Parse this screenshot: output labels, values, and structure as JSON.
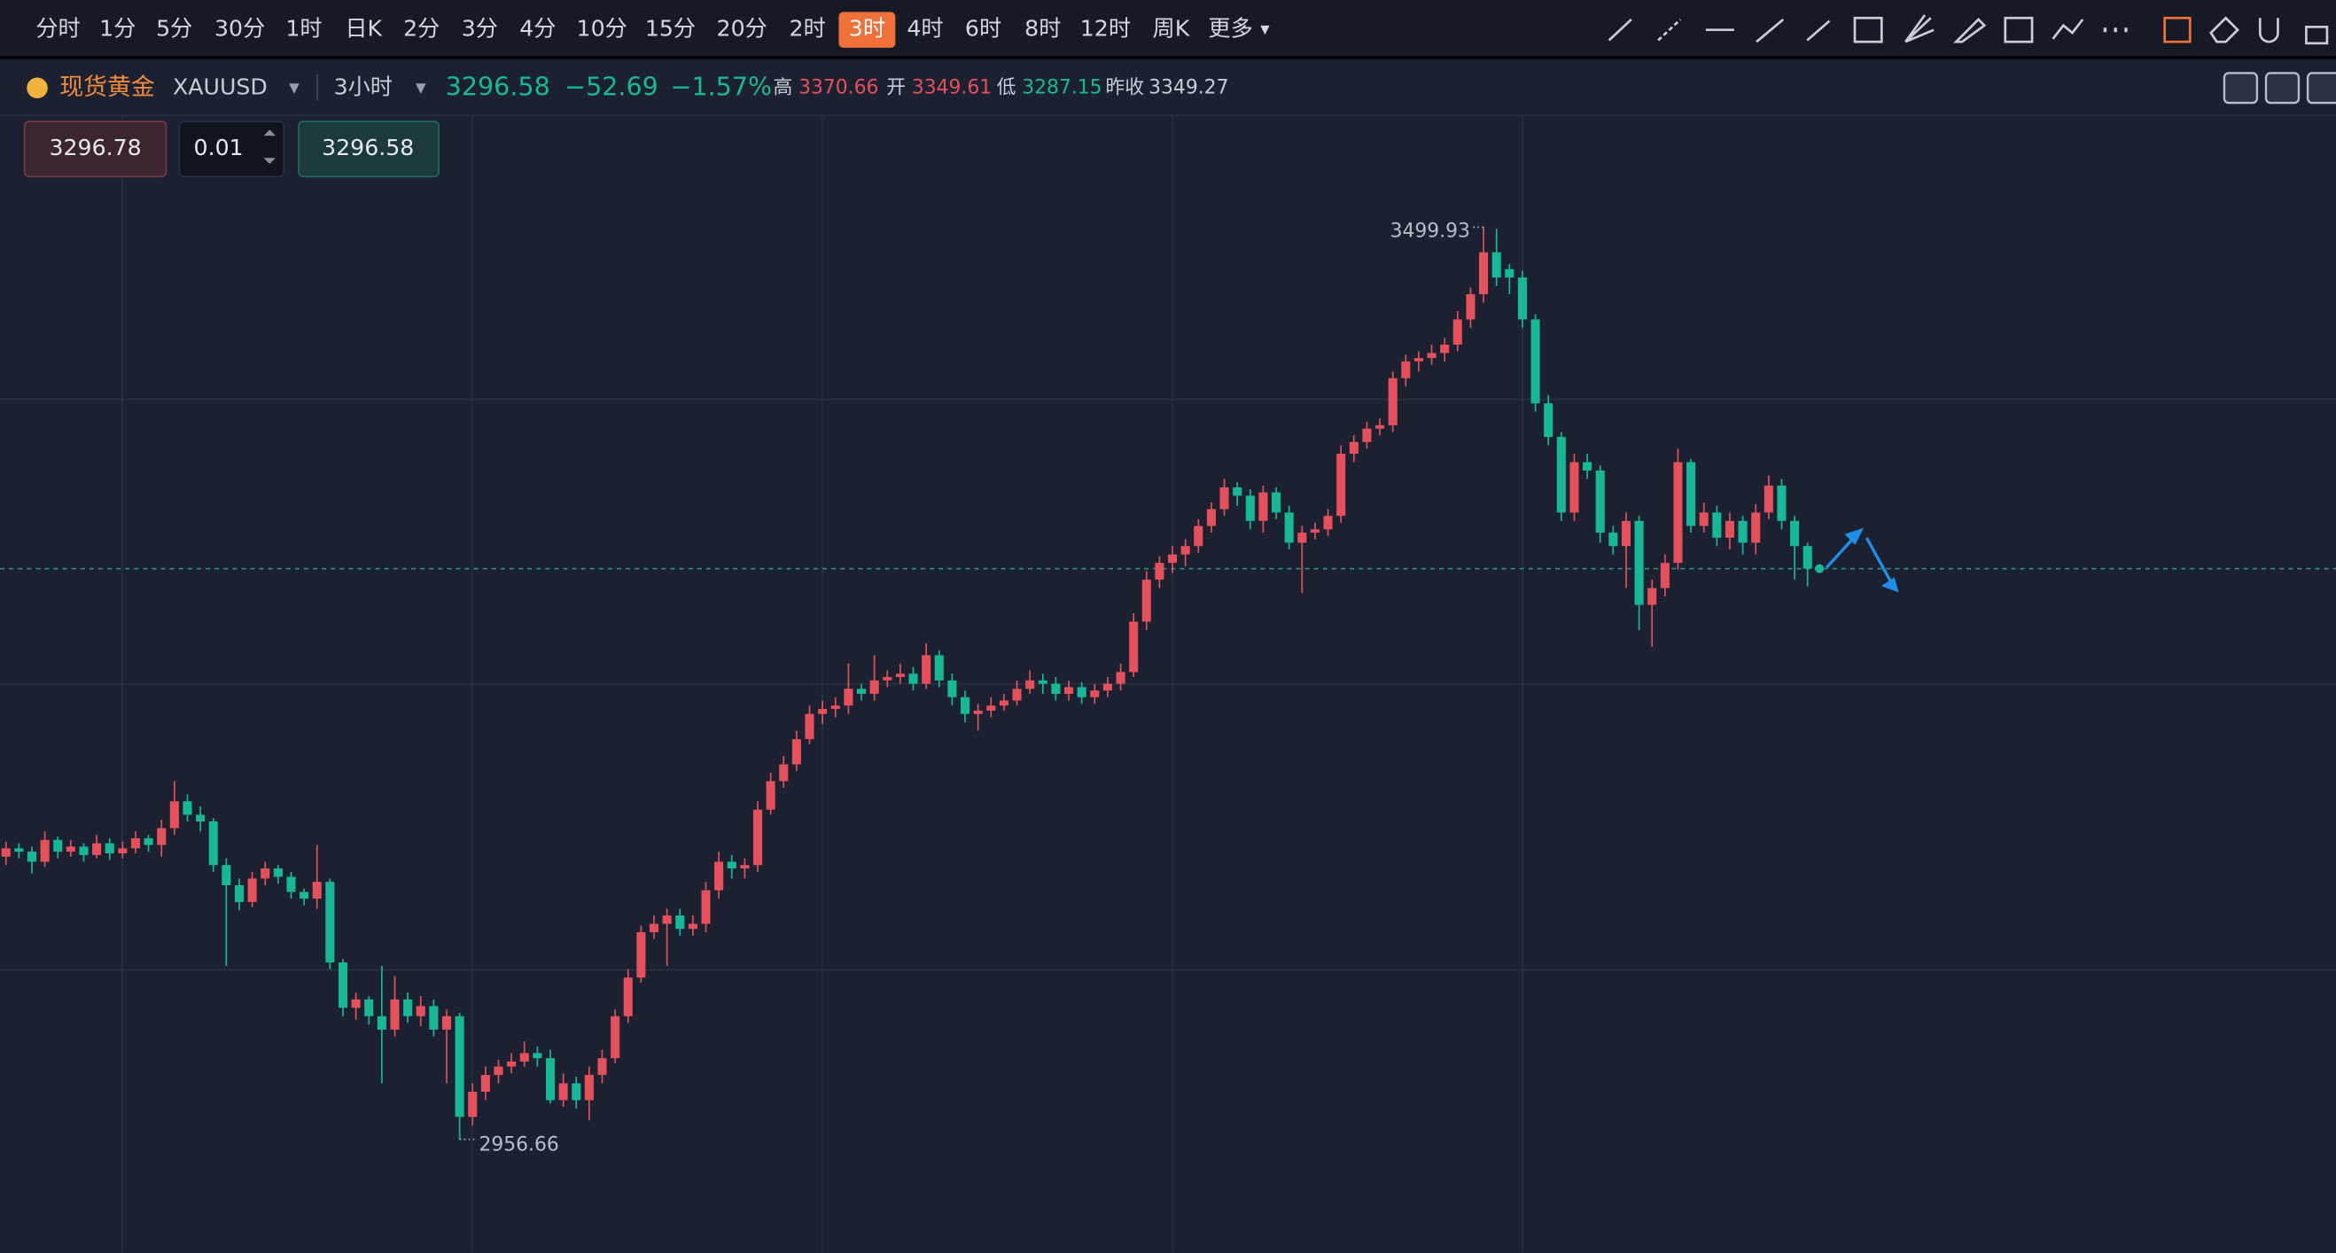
{
  "toolbar": {
    "intervals": [
      "分时",
      "1分",
      "5分",
      "30分",
      "1时",
      "日K",
      "2分",
      "3分",
      "4分",
      "10分",
      "15分",
      "20分",
      "2时",
      "3时",
      "4时",
      "6时",
      "8时",
      "12时",
      "周K",
      "更多"
    ],
    "active_index": 13
  },
  "quote": {
    "name": "现货黄金",
    "symbol": "XAUUSD",
    "period": "3小时",
    "price": 3296.58,
    "change": "−52.69",
    "change_pct": "−1.57%",
    "high_label": "高",
    "high": 3370.66,
    "open_label": "开",
    "open": 3349.61,
    "low_label": "低",
    "low": 3287.15,
    "prev_close_label": "昨收",
    "prev_close": 3349.27
  },
  "trade": {
    "sell": "3296.78",
    "lot": "0.01",
    "buy": "3296.58"
  },
  "chart_data": {
    "type": "candlestick",
    "up_color": "#e5505a",
    "down_color": "#17b897",
    "ylim": [
      2889,
      3566
    ],
    "candles": [
      [
        3125,
        3134,
        3120,
        3130
      ],
      [
        3130,
        3133,
        3124,
        3128
      ],
      [
        3128,
        3131,
        3115,
        3122
      ],
      [
        3122,
        3140,
        3119,
        3135
      ],
      [
        3135,
        3137,
        3124,
        3128
      ],
      [
        3128,
        3135,
        3125,
        3131
      ],
      [
        3131,
        3133,
        3122,
        3126
      ],
      [
        3126,
        3138,
        3124,
        3133
      ],
      [
        3133,
        3136,
        3123,
        3127
      ],
      [
        3127,
        3134,
        3124,
        3130
      ],
      [
        3130,
        3140,
        3127,
        3136
      ],
      [
        3136,
        3138,
        3128,
        3132
      ],
      [
        3132,
        3147,
        3125,
        3142
      ],
      [
        3142,
        3170,
        3138,
        3158
      ],
      [
        3158,
        3162,
        3146,
        3150
      ],
      [
        3150,
        3155,
        3140,
        3146
      ],
      [
        3146,
        3148,
        3116,
        3120
      ],
      [
        3120,
        3124,
        3060,
        3108
      ],
      [
        3108,
        3112,
        3093,
        3098
      ],
      [
        3098,
        3116,
        3095,
        3112
      ],
      [
        3112,
        3122,
        3108,
        3118
      ],
      [
        3118,
        3120,
        3109,
        3113
      ],
      [
        3113,
        3116,
        3100,
        3104
      ],
      [
        3104,
        3106,
        3096,
        3100
      ],
      [
        3100,
        3132,
        3094,
        3110
      ],
      [
        3110,
        3112,
        3058,
        3062
      ],
      [
        3062,
        3064,
        3030,
        3035
      ],
      [
        3035,
        3044,
        3028,
        3040
      ],
      [
        3040,
        3042,
        3025,
        3030
      ],
      [
        3030,
        3060,
        2990,
        3022
      ],
      [
        3022,
        3054,
        3018,
        3040
      ],
      [
        3040,
        3044,
        3026,
        3030
      ],
      [
        3030,
        3042,
        3024,
        3036
      ],
      [
        3036,
        3040,
        3018,
        3022
      ],
      [
        3022,
        3034,
        2990,
        3030
      ],
      [
        3030,
        3032,
        2956.66,
        2970
      ],
      [
        2970,
        2990,
        2965,
        2985
      ],
      [
        2985,
        3000,
        2980,
        2995
      ],
      [
        2995,
        3004,
        2990,
        3000
      ],
      [
        3000,
        3008,
        2996,
        3003
      ],
      [
        3003,
        3015,
        3000,
        3008
      ],
      [
        3008,
        3012,
        3000,
        3005
      ],
      [
        3005,
        3010,
        2978,
        2980
      ],
      [
        2980,
        2996,
        2976,
        2990
      ],
      [
        2990,
        2994,
        2975,
        2980
      ],
      [
        2980,
        3000,
        2968,
        2995
      ],
      [
        2995,
        3010,
        2990,
        3005
      ],
      [
        3005,
        3034,
        3002,
        3030
      ],
      [
        3030,
        3058,
        3026,
        3053
      ],
      [
        3053,
        3084,
        3050,
        3080
      ],
      [
        3080,
        3090,
        3076,
        3085
      ],
      [
        3085,
        3094,
        3060,
        3090
      ],
      [
        3090,
        3094,
        3078,
        3082
      ],
      [
        3082,
        3090,
        3078,
        3085
      ],
      [
        3085,
        3110,
        3080,
        3105
      ],
      [
        3105,
        3128,
        3100,
        3122
      ],
      [
        3122,
        3126,
        3112,
        3118
      ],
      [
        3118,
        3124,
        3112,
        3120
      ],
      [
        3120,
        3158,
        3116,
        3153
      ],
      [
        3153,
        3175,
        3150,
        3170
      ],
      [
        3170,
        3185,
        3166,
        3180
      ],
      [
        3180,
        3200,
        3176,
        3195
      ],
      [
        3195,
        3215,
        3192,
        3210
      ],
      [
        3210,
        3218,
        3204,
        3213
      ],
      [
        3213,
        3220,
        3208,
        3215
      ],
      [
        3215,
        3240,
        3210,
        3225
      ],
      [
        3225,
        3228,
        3218,
        3222
      ],
      [
        3222,
        3245,
        3218,
        3230
      ],
      [
        3230,
        3236,
        3226,
        3232
      ],
      [
        3232,
        3240,
        3228,
        3234
      ],
      [
        3234,
        3238,
        3224,
        3228
      ],
      [
        3228,
        3252,
        3225,
        3245
      ],
      [
        3245,
        3248,
        3226,
        3230
      ],
      [
        3230,
        3234,
        3215,
        3220
      ],
      [
        3220,
        3224,
        3205,
        3210
      ],
      [
        3210,
        3216,
        3200,
        3212
      ],
      [
        3212,
        3220,
        3208,
        3215
      ],
      [
        3215,
        3222,
        3212,
        3218
      ],
      [
        3218,
        3230,
        3215,
        3225
      ],
      [
        3225,
        3236,
        3222,
        3230
      ],
      [
        3230,
        3234,
        3222,
        3228
      ],
      [
        3228,
        3232,
        3218,
        3222
      ],
      [
        3222,
        3230,
        3218,
        3226
      ],
      [
        3226,
        3229,
        3216,
        3220
      ],
      [
        3220,
        3228,
        3216,
        3224
      ],
      [
        3224,
        3232,
        3220,
        3228
      ],
      [
        3228,
        3240,
        3224,
        3235
      ],
      [
        3235,
        3270,
        3232,
        3265
      ],
      [
        3265,
        3295,
        3260,
        3290
      ],
      [
        3290,
        3304,
        3285,
        3300
      ],
      [
        3300,
        3310,
        3294,
        3305
      ],
      [
        3305,
        3314,
        3298,
        3310
      ],
      [
        3310,
        3326,
        3306,
        3322
      ],
      [
        3322,
        3336,
        3318,
        3332
      ],
      [
        3332,
        3350,
        3328,
        3345
      ],
      [
        3345,
        3348,
        3334,
        3340
      ],
      [
        3340,
        3344,
        3320,
        3325
      ],
      [
        3325,
        3346,
        3318,
        3342
      ],
      [
        3342,
        3345,
        3326,
        3330
      ],
      [
        3330,
        3334,
        3308,
        3312
      ],
      [
        3312,
        3322,
        3282,
        3318
      ],
      [
        3318,
        3324,
        3314,
        3320
      ],
      [
        3320,
        3332,
        3316,
        3328
      ],
      [
        3328,
        3370,
        3324,
        3365
      ],
      [
        3365,
        3376,
        3360,
        3372
      ],
      [
        3372,
        3384,
        3368,
        3380
      ],
      [
        3380,
        3386,
        3376,
        3382
      ],
      [
        3382,
        3414,
        3378,
        3410
      ],
      [
        3410,
        3424,
        3405,
        3420
      ],
      [
        3420,
        3426,
        3414,
        3422
      ],
      [
        3422,
        3430,
        3418,
        3425
      ],
      [
        3425,
        3434,
        3420,
        3430
      ],
      [
        3430,
        3450,
        3426,
        3445
      ],
      [
        3445,
        3464,
        3440,
        3460
      ],
      [
        3460,
        3499.93,
        3455,
        3485
      ],
      [
        3485,
        3499,
        3465,
        3470
      ],
      [
        3475,
        3478,
        3460,
        3470
      ],
      [
        3470,
        3474,
        3440,
        3445
      ],
      [
        3445,
        3448,
        3390,
        3395
      ],
      [
        3395,
        3400,
        3370,
        3375
      ],
      [
        3375,
        3378,
        3325,
        3330
      ],
      [
        3330,
        3365,
        3325,
        3360
      ],
      [
        3360,
        3365,
        3350,
        3355
      ],
      [
        3355,
        3358,
        3312,
        3318
      ],
      [
        3318,
        3322,
        3305,
        3310
      ],
      [
        3310,
        3330,
        3285,
        3325
      ],
      [
        3325,
        3328,
        3260,
        3275
      ],
      [
        3275,
        3290,
        3250,
        3285
      ],
      [
        3285,
        3305,
        3280,
        3300
      ],
      [
        3300,
        3368,
        3296,
        3360
      ],
      [
        3360,
        3362,
        3318,
        3322
      ],
      [
        3322,
        3336,
        3318,
        3330
      ],
      [
        3330,
        3334,
        3310,
        3315
      ],
      [
        3315,
        3330,
        3308,
        3325
      ],
      [
        3325,
        3328,
        3305,
        3312
      ],
      [
        3312,
        3335,
        3305,
        3330
      ],
      [
        3330,
        3352,
        3326,
        3346
      ],
      [
        3346,
        3350,
        3320,
        3325
      ],
      [
        3325,
        3328,
        3290,
        3310
      ],
      [
        3310,
        3312,
        3286,
        3296.58
      ]
    ]
  }
}
